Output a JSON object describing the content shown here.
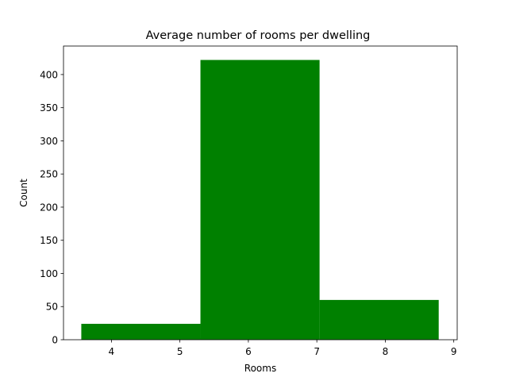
{
  "chart_data": {
    "type": "bar",
    "title": "Average number of rooms per dwelling",
    "xlabel": "Rooms",
    "ylabel": "Count",
    "bar_color": "#008000",
    "xlim": [
      3.3,
      9.05
    ],
    "ylim": [
      0,
      443
    ],
    "x_ticks": [
      4,
      5,
      6,
      7,
      8,
      9
    ],
    "y_ticks": [
      0,
      50,
      100,
      150,
      200,
      250,
      300,
      350,
      400
    ],
    "bins": [
      {
        "x0": 3.56,
        "x1": 5.3,
        "value": 24
      },
      {
        "x0": 5.3,
        "x1": 7.04,
        "value": 422
      },
      {
        "x0": 7.04,
        "x1": 8.78,
        "value": 60
      }
    ],
    "grid": false,
    "legend": false
  }
}
